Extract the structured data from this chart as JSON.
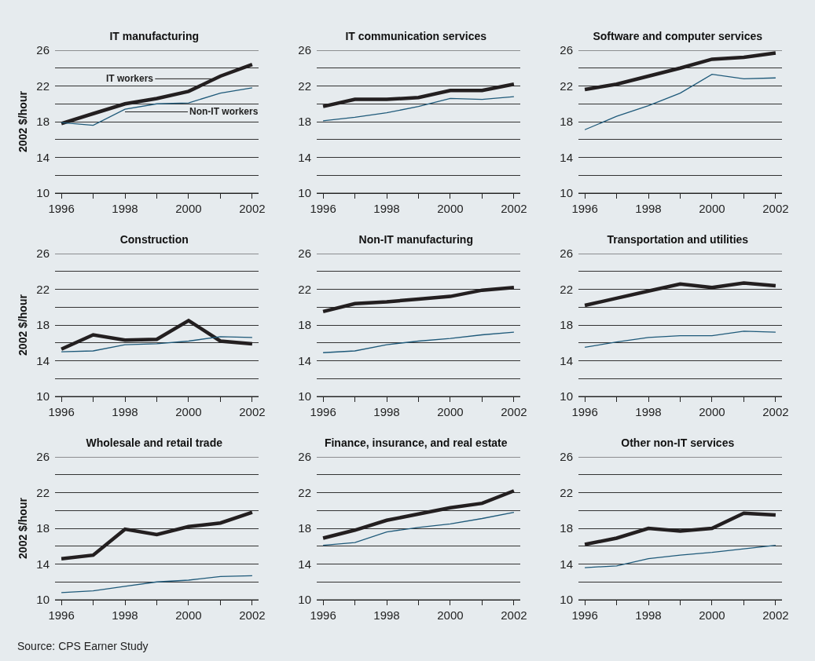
{
  "chart_data": [
    {
      "type": "line",
      "title": "IT manufacturing",
      "ylabel": "2002 $/hour",
      "x": [
        1996,
        1997,
        1998,
        1999,
        2000,
        2001,
        2002
      ],
      "xlim": [
        1995.8,
        2002.2
      ],
      "xticks": [
        1996,
        {
          "value": 1997,
          "label": null
        },
        1998,
        {
          "value": 1999,
          "label": null
        },
        2000,
        {
          "value": 2001,
          "label": null
        },
        2002
      ],
      "ylim": [
        10,
        26
      ],
      "yticks": [
        10,
        {
          "value": 12,
          "label": null
        },
        14,
        {
          "value": 16,
          "label": null
        },
        18,
        {
          "value": 20,
          "label": null
        },
        22,
        {
          "value": 24,
          "label": null
        },
        26
      ],
      "grid": "y",
      "marker": "none",
      "line_style": "solid",
      "series": [
        {
          "color": "#231f20",
          "values": [
            17.8,
            18.9,
            20.0,
            20.6,
            21.4,
            23.1,
            24.4
          ]
        },
        {
          "color": "#1f5a7a",
          "values": [
            17.9,
            17.6,
            19.4,
            20.0,
            20.1,
            21.2,
            21.8
          ]
        }
      ],
      "annotations": [
        {
          "text": "IT workers",
          "x": 2000.8,
          "y": 22.8
        },
        {
          "text": "Non-IT workers",
          "x": 1998,
          "y": 19.1
        }
      ]
    },
    {
      "type": "line",
      "title": "IT communication services",
      "x": [
        1996,
        1997,
        1998,
        1999,
        2000,
        2001,
        2002
      ],
      "xlim": [
        1995.8,
        2002.2
      ],
      "xticks": [
        1996,
        {
          "value": 1997,
          "label": null
        },
        1998,
        {
          "value": 1999,
          "label": null
        },
        2000,
        {
          "value": 2001,
          "label": null
        },
        2002
      ],
      "ylim": [
        10,
        26
      ],
      "yticks": [
        10,
        {
          "value": 12,
          "label": null
        },
        14,
        {
          "value": 16,
          "label": null
        },
        18,
        {
          "value": 20,
          "label": null
        },
        22,
        {
          "value": 24,
          "label": null
        },
        26
      ],
      "grid": "y",
      "marker": "none",
      "line_style": "solid",
      "series": [
        {
          "color": "#231f20",
          "values": [
            19.7,
            20.5,
            20.5,
            20.7,
            21.5,
            21.5,
            22.2
          ]
        },
        {
          "color": "#1f5a7a",
          "values": [
            18.1,
            18.5,
            19.0,
            19.7,
            20.6,
            20.5,
            20.8
          ]
        }
      ]
    },
    {
      "type": "line",
      "title": "Software and computer services",
      "x": [
        1996,
        1997,
        1998,
        1999,
        2000,
        2001,
        2002
      ],
      "xlim": [
        1995.8,
        2002.2
      ],
      "xticks": [
        1996,
        {
          "value": 1997,
          "label": null
        },
        1998,
        {
          "value": 1999,
          "label": null
        },
        2000,
        {
          "value": 2001,
          "label": null
        },
        2002
      ],
      "ylim": [
        10,
        26
      ],
      "yticks": [
        10,
        {
          "value": 12,
          "label": null
        },
        14,
        {
          "value": 16,
          "label": null
        },
        18,
        {
          "value": 20,
          "label": null
        },
        22,
        {
          "value": 24,
          "label": null
        },
        26
      ],
      "grid": "y",
      "marker": "none",
      "line_style": "solid",
      "series": [
        {
          "color": "#231f20",
          "values": [
            21.6,
            22.2,
            23.1,
            24.0,
            25.0,
            25.2,
            25.7
          ]
        },
        {
          "color": "#1f5a7a",
          "values": [
            17.1,
            18.6,
            19.8,
            21.2,
            23.3,
            22.8,
            22.9
          ]
        }
      ]
    },
    {
      "type": "line",
      "title": "Construction",
      "ylabel": "2002 $/hour",
      "x": [
        1996,
        1997,
        1998,
        1999,
        2000,
        2001,
        2002
      ],
      "xlim": [
        1995.8,
        2002.2
      ],
      "xticks": [
        1996,
        {
          "value": 1997,
          "label": null
        },
        1998,
        {
          "value": 1999,
          "label": null
        },
        2000,
        {
          "value": 2001,
          "label": null
        },
        2002
      ],
      "ylim": [
        10,
        26
      ],
      "yticks": [
        10,
        {
          "value": 12,
          "label": null
        },
        14,
        {
          "value": 16,
          "label": null
        },
        18,
        {
          "value": 20,
          "label": null
        },
        22,
        {
          "value": 24,
          "label": null
        },
        26
      ],
      "grid": "y",
      "marker": "none",
      "line_style": "solid",
      "series": [
        {
          "color": "#231f20",
          "values": [
            15.3,
            16.9,
            16.3,
            16.4,
            18.5,
            16.2,
            15.9
          ]
        },
        {
          "color": "#1f5a7a",
          "values": [
            15.0,
            15.1,
            15.8,
            15.9,
            16.2,
            16.7,
            16.6
          ]
        }
      ]
    },
    {
      "type": "line",
      "title": "Non-IT manufacturing",
      "x": [
        1996,
        1997,
        1998,
        1999,
        2000,
        2001,
        2002
      ],
      "xlim": [
        1995.8,
        2002.2
      ],
      "xticks": [
        1996,
        {
          "value": 1997,
          "label": null
        },
        1998,
        {
          "value": 1999,
          "label": null
        },
        2000,
        {
          "value": 2001,
          "label": null
        },
        2002
      ],
      "ylim": [
        10,
        26
      ],
      "yticks": [
        10,
        {
          "value": 12,
          "label": null
        },
        14,
        {
          "value": 16,
          "label": null
        },
        18,
        {
          "value": 20,
          "label": null
        },
        22,
        {
          "value": 24,
          "label": null
        },
        26
      ],
      "grid": "y",
      "marker": "none",
      "line_style": "solid",
      "series": [
        {
          "color": "#231f20",
          "values": [
            19.5,
            20.4,
            20.6,
            20.9,
            21.2,
            21.9,
            22.2
          ]
        },
        {
          "color": "#1f5a7a",
          "values": [
            14.9,
            15.1,
            15.8,
            16.2,
            16.5,
            16.9,
            17.2
          ]
        }
      ]
    },
    {
      "type": "line",
      "title": "Transportation and utilities",
      "x": [
        1996,
        1997,
        1998,
        1999,
        2000,
        2001,
        2002
      ],
      "xlim": [
        1995.8,
        2002.2
      ],
      "xticks": [
        1996,
        {
          "value": 1997,
          "label": null
        },
        1998,
        {
          "value": 1999,
          "label": null
        },
        2000,
        {
          "value": 2001,
          "label": null
        },
        2002
      ],
      "ylim": [
        10,
        26
      ],
      "yticks": [
        10,
        {
          "value": 12,
          "label": null
        },
        14,
        {
          "value": 16,
          "label": null
        },
        18,
        {
          "value": 20,
          "label": null
        },
        22,
        {
          "value": 24,
          "label": null
        },
        26
      ],
      "grid": "y",
      "marker": "none",
      "line_style": "solid",
      "series": [
        {
          "color": "#231f20",
          "values": [
            20.2,
            21.0,
            21.8,
            22.6,
            22.2,
            22.7,
            22.4
          ]
        },
        {
          "color": "#1f5a7a",
          "values": [
            15.5,
            16.1,
            16.6,
            16.8,
            16.8,
            17.3,
            17.2
          ]
        }
      ]
    },
    {
      "type": "line",
      "title": "Wholesale and retail trade",
      "ylabel": "2002 $/hour",
      "x": [
        1996,
        1997,
        1998,
        1999,
        2000,
        2001,
        2002
      ],
      "xlim": [
        1995.8,
        2002.2
      ],
      "xticks": [
        1996,
        {
          "value": 1997,
          "label": null
        },
        1998,
        {
          "value": 1999,
          "label": null
        },
        2000,
        {
          "value": 2001,
          "label": null
        },
        2002
      ],
      "ylim": [
        10,
        26
      ],
      "yticks": [
        10,
        {
          "value": 12,
          "label": null
        },
        14,
        {
          "value": 16,
          "label": null
        },
        18,
        {
          "value": 20,
          "label": null
        },
        22,
        {
          "value": 24,
          "label": null
        },
        26
      ],
      "grid": "y",
      "marker": "none",
      "line_style": "solid",
      "series": [
        {
          "color": "#231f20",
          "values": [
            14.6,
            15.0,
            17.9,
            17.3,
            18.2,
            18.6,
            19.8
          ]
        },
        {
          "color": "#1f5a7a",
          "values": [
            10.8,
            11.0,
            11.5,
            12.0,
            12.2,
            12.6,
            12.7
          ]
        }
      ]
    },
    {
      "type": "line",
      "title": "Finance, insurance, and real estate",
      "x": [
        1996,
        1997,
        1998,
        1999,
        2000,
        2001,
        2002
      ],
      "xlim": [
        1995.8,
        2002.2
      ],
      "xticks": [
        1996,
        {
          "value": 1997,
          "label": null
        },
        1998,
        {
          "value": 1999,
          "label": null
        },
        2000,
        {
          "value": 2001,
          "label": null
        },
        2002
      ],
      "ylim": [
        10,
        26
      ],
      "yticks": [
        10,
        {
          "value": 12,
          "label": null
        },
        14,
        {
          "value": 16,
          "label": null
        },
        18,
        {
          "value": 20,
          "label": null
        },
        22,
        {
          "value": 24,
          "label": null
        },
        26
      ],
      "grid": "y",
      "marker": "none",
      "line_style": "solid",
      "series": [
        {
          "color": "#231f20",
          "values": [
            16.9,
            17.8,
            18.9,
            19.6,
            20.3,
            20.8,
            22.2
          ]
        },
        {
          "color": "#1f5a7a",
          "values": [
            16.1,
            16.4,
            17.6,
            18.1,
            18.5,
            19.1,
            19.8
          ]
        }
      ]
    },
    {
      "type": "line",
      "title": "Other non-IT services",
      "x": [
        1996,
        1997,
        1998,
        1999,
        2000,
        2001,
        2002
      ],
      "xlim": [
        1995.8,
        2002.2
      ],
      "xticks": [
        1996,
        {
          "value": 1997,
          "label": null
        },
        1998,
        {
          "value": 1999,
          "label": null
        },
        2000,
        {
          "value": 2001,
          "label": null
        },
        2002
      ],
      "ylim": [
        10,
        26
      ],
      "yticks": [
        10,
        {
          "value": 12,
          "label": null
        },
        14,
        {
          "value": 16,
          "label": null
        },
        18,
        {
          "value": 20,
          "label": null
        },
        22,
        {
          "value": 24,
          "label": null
        },
        26
      ],
      "grid": "y",
      "marker": "none",
      "line_style": "solid",
      "series": [
        {
          "color": "#231f20",
          "values": [
            16.2,
            16.9,
            18.0,
            17.7,
            18.0,
            19.7,
            19.5
          ]
        },
        {
          "color": "#1f5a7a",
          "values": [
            13.6,
            13.8,
            14.6,
            15.0,
            15.3,
            15.7,
            16.1
          ]
        }
      ],
      "annotations": [
        "Source: CPS Earner Study"
      ]
    }
  ]
}
